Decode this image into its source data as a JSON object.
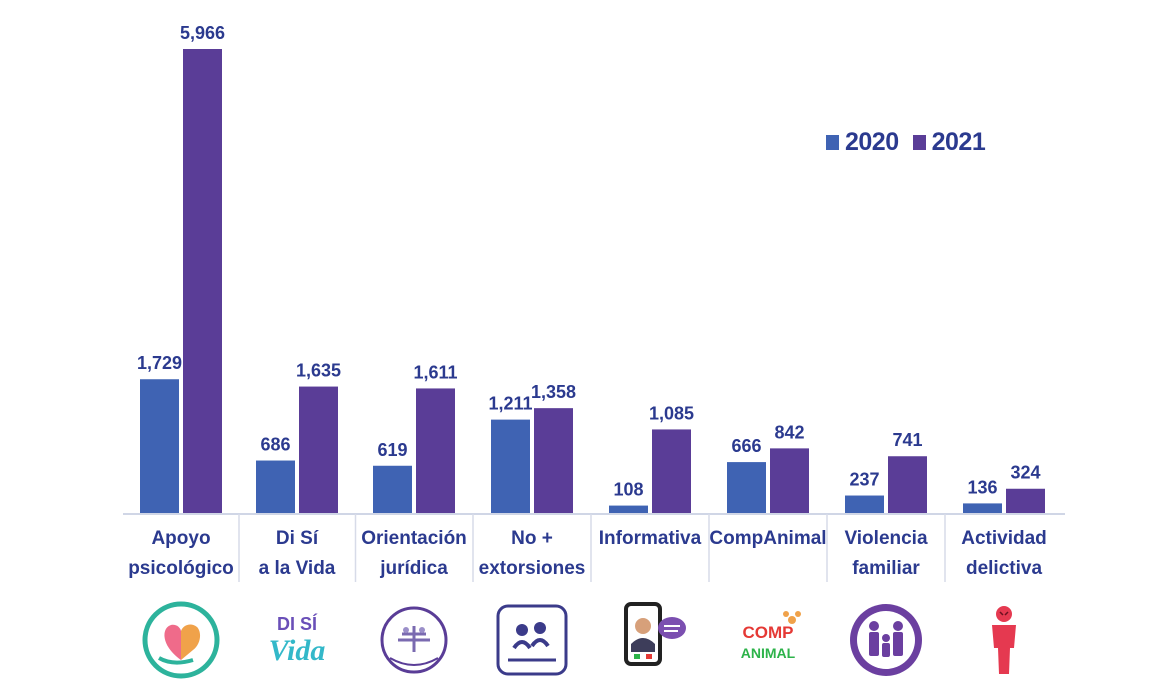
{
  "chart_data": {
    "type": "bar",
    "categories": [
      [
        "Apoyo",
        "psicológico"
      ],
      [
        "Di Sí",
        "a la Vida"
      ],
      [
        "Orientación",
        "jurídica"
      ],
      [
        "No +",
        "extorsiones"
      ],
      [
        "Informativa"
      ],
      [
        "CompAnimal"
      ],
      [
        "Violencia",
        "familiar"
      ],
      [
        "Actividad",
        "delictiva"
      ]
    ],
    "series": [
      {
        "name": "2020",
        "color": "#3f63b3",
        "values": [
          1729,
          686,
          619,
          1211,
          108,
          666,
          237,
          136
        ],
        "labels": [
          "1,729",
          "686",
          "619",
          "1,211",
          "108",
          "666",
          "237",
          "136"
        ]
      },
      {
        "name": "2021",
        "color": "#5a3d97",
        "values": [
          5966,
          1635,
          1611,
          1358,
          1085,
          842,
          741,
          324
        ],
        "labels": [
          "5,966",
          "1,635",
          "1,611",
          "1,358",
          "1,085",
          "842",
          "741",
          "324"
        ]
      }
    ],
    "ylim": [
      0,
      6000
    ],
    "grid": false,
    "legend_position": "top-right"
  },
  "logos": [
    {
      "icon": "heart-brain-logo-icon",
      "color": "#2db39c"
    },
    {
      "icon": "di-si-a-la-vida-logo-icon",
      "color": "#6a4fb8",
      "text": [
        "DI SÍ",
        "Vida"
      ]
    },
    {
      "icon": "consejo-ciudadano-logo-icon",
      "color": "#5a3d97"
    },
    {
      "icon": "no-mas-extorsiones-logo-icon",
      "color": "#3b3b8a"
    },
    {
      "icon": "tablet-chat-logo-icon",
      "color": "#6b3fa0"
    },
    {
      "icon": "companimal-logo-icon",
      "color": "#e53935",
      "text": [
        "COMP",
        "ANIMAL"
      ]
    },
    {
      "icon": "family-circle-logo-icon",
      "color": "#6b3fa0"
    },
    {
      "icon": "red-figure-logo-icon",
      "color": "#e53950"
    }
  ]
}
